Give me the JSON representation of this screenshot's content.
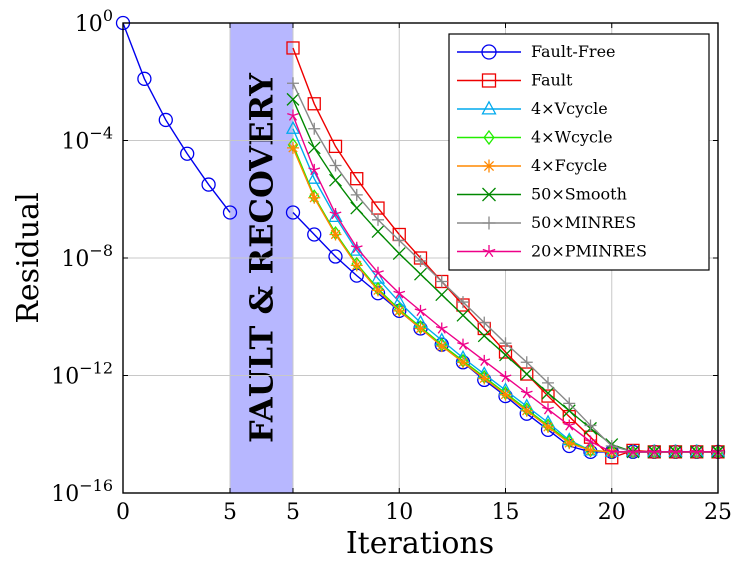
{
  "chart_data": {
    "type": "line",
    "xlabel": "Iterations",
    "ylabel": "Residual",
    "y_scale": "log",
    "ylim_exponent": [
      -16,
      0
    ],
    "grid": true,
    "legend_position": "top-right",
    "x_tick_labels": [
      "0",
      "5",
      "5",
      "10",
      "15",
      "20",
      "25"
    ],
    "y_tick_labels": [
      {
        "base": "10",
        "exp": "0"
      },
      {
        "base": "10",
        "exp": "−4"
      },
      {
        "base": "10",
        "exp": "−8"
      },
      {
        "base": "10",
        "exp": "−12"
      },
      {
        "base": "10",
        "exp": "−16"
      }
    ],
    "band_label": "FAULT & RECOVERY",
    "band_color": "#b7b7ff",
    "series": [
      {
        "name": "Fault-Free",
        "color": "#0000ee",
        "marker": "circle",
        "segments": [
          {
            "x": [
              0,
              1,
              2,
              3,
              4,
              5
            ],
            "y": [
              0,
              -1.9,
              -3.3,
              -4.45,
              -5.5,
              -6.45
            ]
          },
          {
            "x": [
              5,
              6,
              7,
              8,
              9,
              10,
              11,
              12,
              13,
              14,
              15,
              16,
              17,
              18,
              19,
              20,
              21,
              22,
              23,
              24,
              25
            ],
            "y": [
              -6.45,
              -7.2,
              -7.95,
              -8.6,
              -9.2,
              -9.8,
              -10.4,
              -10.95,
              -11.55,
              -12.15,
              -12.7,
              -13.3,
              -13.85,
              -14.4,
              -14.6,
              -14.6,
              -14.6,
              -14.6,
              -14.6,
              -14.6,
              -14.6
            ]
          }
        ]
      },
      {
        "name": "Fault",
        "color": "#ee0000",
        "marker": "square",
        "segments": [
          {
            "x": [
              5,
              6,
              7,
              8,
              9,
              10,
              11,
              12,
              13,
              14,
              15,
              16,
              17,
              18,
              19,
              20,
              21,
              22,
              23,
              24,
              25
            ],
            "y": [
              -0.85,
              -2.75,
              -4.2,
              -5.3,
              -6.3,
              -7.2,
              -8.0,
              -8.8,
              -9.6,
              -10.4,
              -11.2,
              -11.95,
              -12.7,
              -13.4,
              -14.1,
              -14.8,
              -14.55,
              -14.6,
              -14.6,
              -14.6,
              -14.6
            ]
          }
        ]
      },
      {
        "name": "4×Vcycle",
        "color": "#00aaee",
        "marker": "triangle",
        "segments": [
          {
            "x": [
              5,
              6,
              7,
              8,
              9,
              10,
              11,
              12,
              13,
              14,
              15,
              16,
              17,
              18,
              19,
              20,
              21,
              22,
              23,
              24,
              25
            ],
            "y": [
              -3.6,
              -5.3,
              -6.6,
              -7.75,
              -8.7,
              -9.5,
              -10.2,
              -10.8,
              -11.4,
              -11.95,
              -12.5,
              -13.05,
              -13.6,
              -14.2,
              -14.55,
              -14.6,
              -14.6,
              -14.6,
              -14.6,
              -14.6,
              -14.6
            ]
          }
        ]
      },
      {
        "name": "4×Wcycle",
        "color": "#22ee00",
        "marker": "diamond",
        "segments": [
          {
            "x": [
              5,
              6,
              7,
              8,
              9,
              10,
              11,
              12,
              13,
              14,
              15,
              16,
              17,
              18,
              19,
              20,
              21,
              22,
              23,
              24,
              25
            ],
            "y": [
              -4.15,
              -5.9,
              -7.15,
              -8.2,
              -9.05,
              -9.75,
              -10.35,
              -10.95,
              -11.5,
              -12.05,
              -12.6,
              -13.15,
              -13.7,
              -14.25,
              -14.55,
              -14.6,
              -14.6,
              -14.6,
              -14.6,
              -14.6,
              -14.6
            ]
          }
        ]
      },
      {
        "name": "4×Fcycle",
        "color": "#ff8800",
        "marker": "asterisk",
        "segments": [
          {
            "x": [
              5,
              6,
              7,
              8,
              9,
              10,
              11,
              12,
              13,
              14,
              15,
              16,
              17,
              18,
              19,
              20,
              21,
              22,
              23,
              24,
              25
            ],
            "y": [
              -4.25,
              -5.95,
              -7.2,
              -8.25,
              -9.1,
              -9.8,
              -10.4,
              -11.0,
              -11.55,
              -12.1,
              -12.65,
              -13.2,
              -13.75,
              -14.3,
              -14.55,
              -14.6,
              -14.6,
              -14.6,
              -14.6,
              -14.6,
              -14.6
            ]
          }
        ]
      },
      {
        "name": "50×Smooth",
        "color": "#008800",
        "marker": "x",
        "segments": [
          {
            "x": [
              5,
              6,
              7,
              8,
              9,
              10,
              11,
              12,
              13,
              14,
              15,
              16,
              17,
              18,
              19,
              20,
              21,
              22,
              23,
              24,
              25
            ],
            "y": [
              -2.6,
              -4.25,
              -5.35,
              -6.3,
              -7.1,
              -7.85,
              -8.55,
              -9.25,
              -9.95,
              -10.65,
              -11.3,
              -11.95,
              -12.6,
              -13.2,
              -13.8,
              -14.35,
              -14.6,
              -14.6,
              -14.6,
              -14.6,
              -14.6
            ]
          }
        ]
      },
      {
        "name": "50×MINRES",
        "color": "#888888",
        "marker": "plus",
        "segments": [
          {
            "x": [
              5,
              6,
              7,
              8,
              9,
              10,
              11,
              12,
              13,
              14,
              15,
              16,
              17,
              18,
              19,
              20,
              21,
              22,
              23,
              24,
              25
            ],
            "y": [
              -2.05,
              -3.6,
              -4.85,
              -5.85,
              -6.7,
              -7.4,
              -8.1,
              -8.8,
              -9.5,
              -10.2,
              -10.9,
              -11.55,
              -12.25,
              -12.95,
              -13.7,
              -14.4,
              -14.6,
              -14.6,
              -14.6,
              -14.6,
              -14.6
            ]
          }
        ]
      },
      {
        "name": "20×PMINRES",
        "color": "#ee0088",
        "marker": "star",
        "segments": [
          {
            "x": [
              5,
              6,
              7,
              8,
              9,
              10,
              11,
              12,
              13,
              14,
              15,
              16,
              17,
              18,
              19,
              20,
              21,
              22,
              23,
              24,
              25
            ],
            "y": [
              -3.15,
              -5.0,
              -6.5,
              -7.65,
              -8.5,
              -9.2,
              -9.8,
              -10.4,
              -10.95,
              -11.5,
              -12.05,
              -12.6,
              -13.15,
              -13.7,
              -14.25,
              -14.6,
              -14.6,
              -14.6,
              -14.6,
              -14.6,
              -14.6
            ]
          }
        ]
      }
    ]
  }
}
